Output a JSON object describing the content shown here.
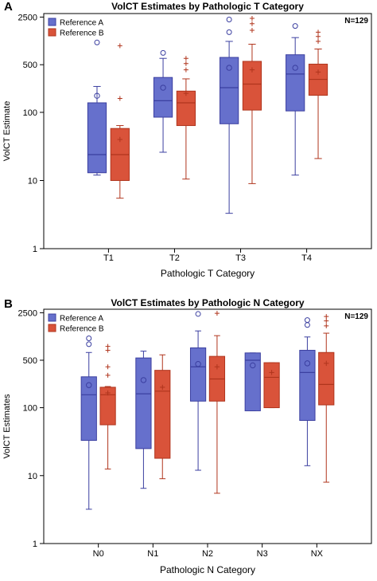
{
  "chart_data": [
    {
      "panel_label": "A",
      "type": "box",
      "title": "VolCT Estimates by Pathologic T Category",
      "xlabel": "Pathologic T Category",
      "ylabel": "VolCT Estimate",
      "y_scale": "log",
      "ylim": [
        1,
        2500
      ],
      "y_ticks": [
        1,
        10,
        100,
        500,
        2500
      ],
      "categories": [
        "T1",
        "T2",
        "T3",
        "T4"
      ],
      "n_label": "N=129",
      "legend_position": "top-left",
      "series": [
        {
          "name": "Reference A",
          "color": "#6670cc",
          "edge": "#3b3fa0",
          "mean_marker": "circle",
          "boxes": [
            {
              "min": 12,
              "q1": 13,
              "median": 24,
              "q3": 138,
              "max": 240,
              "mean": 175,
              "outliers": [
                1060
              ]
            },
            {
              "min": 26,
              "q1": 85,
              "median": 148,
              "q3": 325,
              "max": 620,
              "mean": 230,
              "outliers": [
                745
              ]
            },
            {
              "min": 3.3,
              "q1": 68,
              "median": 230,
              "q3": 640,
              "max": 1100,
              "mean": 450,
              "outliers": [
                1500,
                2300
              ]
            },
            {
              "min": 12,
              "q1": 105,
              "median": 365,
              "q3": 700,
              "max": 1250,
              "mean": 450,
              "outliers": [
                1850
              ]
            }
          ]
        },
        {
          "name": "Reference B",
          "color": "#d9533a",
          "edge": "#b0351d",
          "mean_marker": "plus",
          "boxes": [
            {
              "min": 5.5,
              "q1": 10,
              "median": 24,
              "q3": 58,
              "max": 64,
              "mean": 40,
              "outliers": [
                160,
                950
              ]
            },
            {
              "min": 10.5,
              "q1": 64,
              "median": 138,
              "q3": 205,
              "max": 310,
              "mean": 190,
              "outliers": [
                420,
                520,
                620
              ]
            },
            {
              "min": 9,
              "q1": 108,
              "median": 260,
              "q3": 560,
              "max": 1000,
              "mean": 420,
              "outliers": [
                1600,
                2000,
                2400
              ]
            },
            {
              "min": 21,
              "q1": 178,
              "median": 305,
              "q3": 510,
              "max": 850,
              "mean": 390,
              "outliers": [
                1100,
                1300,
                1500
              ]
            }
          ]
        }
      ]
    },
    {
      "panel_label": "B",
      "type": "box",
      "title": "VolCT Estimates by Pathologic N Category",
      "xlabel": "Pathologic N Category",
      "ylabel": "VolCT Estimates",
      "y_scale": "log",
      "ylim": [
        1,
        2500
      ],
      "y_ticks": [
        1,
        10,
        100,
        500,
        2500
      ],
      "categories": [
        "N0",
        "N1",
        "N2",
        "N3",
        "NX"
      ],
      "n_label": "N=129",
      "legend_position": "top-left",
      "series": [
        {
          "name": "Reference A",
          "color": "#6670cc",
          "edge": "#3b3fa0",
          "mean_marker": "circle",
          "boxes": [
            {
              "min": 3.2,
              "q1": 33,
              "median": 155,
              "q3": 285,
              "max": 650,
              "mean": 215,
              "outliers": [
                860,
                1050
              ]
            },
            {
              "min": 6.5,
              "q1": 25,
              "median": 160,
              "q3": 540,
              "max": 680,
              "mean": 255,
              "outliers": []
            },
            {
              "min": 12,
              "q1": 125,
              "median": 400,
              "q3": 760,
              "max": 1350,
              "mean": 440,
              "outliers": [
                2400
              ]
            },
            {
              "min": 90,
              "q1": 90,
              "median": 500,
              "q3": 640,
              "max": 640,
              "mean": 420,
              "outliers": []
            },
            {
              "min": 14,
              "q1": 65,
              "median": 330,
              "q3": 700,
              "max": 1100,
              "mean": 450,
              "outliers": [
                1650,
                1950
              ]
            }
          ]
        },
        {
          "name": "Reference B",
          "color": "#d9533a",
          "edge": "#b0351d",
          "mean_marker": "plus",
          "boxes": [
            {
              "min": 12.5,
              "q1": 56,
              "median": 155,
              "q3": 200,
              "max": 205,
              "mean": 165,
              "outliers": [
                300,
                400,
                700,
                800
              ]
            },
            {
              "min": 9,
              "q1": 18,
              "median": 175,
              "q3": 355,
              "max": 600,
              "mean": 200,
              "outliers": []
            },
            {
              "min": 5.5,
              "q1": 125,
              "median": 265,
              "q3": 570,
              "max": 1150,
              "mean": 400,
              "outliers": [
                2450
              ]
            },
            {
              "min": 100,
              "q1": 100,
              "median": 280,
              "q3": 460,
              "max": 460,
              "mean": 330,
              "outliers": []
            },
            {
              "min": 8,
              "q1": 110,
              "median": 220,
              "q3": 650,
              "max": 1250,
              "mean": 450,
              "outliers": [
                1600,
                1900,
                2200
              ]
            }
          ]
        }
      ]
    }
  ]
}
